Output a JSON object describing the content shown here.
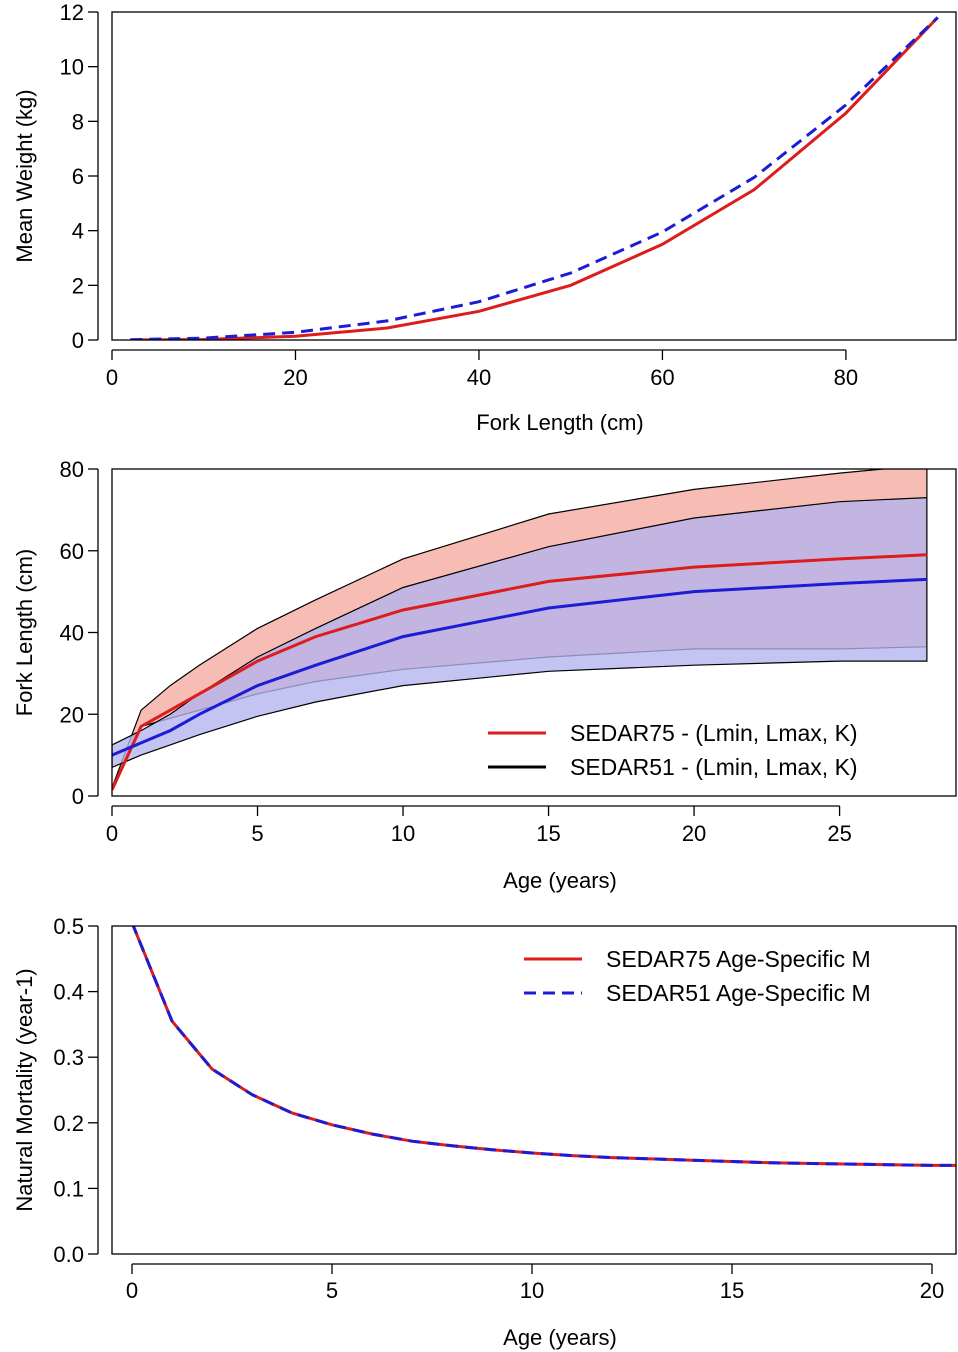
{
  "chart_data": [
    {
      "type": "line",
      "xlabel": "Fork Length (cm)",
      "ylabel": "Mean Weight (kg)",
      "xlim": [
        0,
        92
      ],
      "ylim": [
        0,
        12
      ],
      "xticks": [
        0,
        20,
        40,
        60,
        80
      ],
      "yticks": [
        0,
        2,
        4,
        6,
        8,
        10,
        12
      ],
      "grid": false,
      "legend": "none",
      "series": [
        {
          "color": "#dd1c1c",
          "style": "solid",
          "x": [
            2,
            10,
            20,
            30,
            40,
            50,
            60,
            70,
            80,
            90
          ],
          "y": [
            0.0,
            0.02,
            0.14,
            0.44,
            1.05,
            2.0,
            3.5,
            5.5,
            8.3,
            11.8
          ]
        },
        {
          "color": "#1c1cd6",
          "style": "dashed",
          "x": [
            2,
            10,
            20,
            30,
            40,
            50,
            60,
            70,
            80,
            90
          ],
          "y": [
            0.01,
            0.07,
            0.28,
            0.7,
            1.4,
            2.45,
            3.95,
            5.95,
            8.6,
            11.8
          ]
        }
      ]
    },
    {
      "type": "area",
      "xlabel": "Age (years)",
      "ylabel": "Fork Length (cm)",
      "xlim": [
        0,
        29
      ],
      "ylim": [
        0,
        80
      ],
      "xticks": [
        0,
        5,
        10,
        15,
        20,
        25
      ],
      "yticks": [
        0,
        20,
        40,
        60,
        80
      ],
      "grid": false,
      "legend": "right",
      "legend_entries": [
        {
          "label": "SEDAR75 -  (Lmin, Lmax, K)",
          "color": "#dd1c1c"
        },
        {
          "label": "SEDAR51 -  (Lmin, Lmax, K)",
          "color": "#000000"
        }
      ],
      "bands": [
        {
          "fill": "#f7bcb3",
          "x": [
            0,
            1,
            2,
            3,
            5,
            7,
            10,
            15,
            20,
            25,
            28
          ],
          "upper": [
            2,
            21,
            27,
            32,
            41,
            48,
            58,
            69,
            75,
            79,
            81
          ],
          "lower": [
            2,
            17,
            19,
            21,
            25,
            28,
            31,
            34,
            36,
            36,
            36.5
          ]
        },
        {
          "fill": "#b3b3f0",
          "x": [
            0,
            1,
            2,
            3,
            5,
            7,
            10,
            15,
            20,
            25,
            28
          ],
          "upper": [
            12.5,
            16,
            20,
            25,
            34,
            41,
            51,
            61,
            68,
            72,
            73
          ],
          "lower": [
            7,
            10,
            12.5,
            15,
            19.5,
            23,
            27,
            30.5,
            32,
            33,
            33
          ]
        }
      ],
      "series": [
        {
          "color": "#dd1c1c",
          "x": [
            0,
            1,
            2,
            3,
            5,
            7,
            10,
            15,
            20,
            25,
            28
          ],
          "y": [
            1.5,
            17,
            21,
            25,
            33,
            39,
            45.5,
            52.5,
            56,
            58,
            59
          ]
        },
        {
          "color": "#1c1cd6",
          "x": [
            0,
            1,
            2,
            3,
            5,
            7,
            10,
            15,
            20,
            25,
            28
          ],
          "y": [
            10,
            13,
            16,
            20,
            27,
            32,
            39,
            46,
            50,
            52,
            53
          ]
        }
      ]
    },
    {
      "type": "line",
      "xlabel": "Age (years)",
      "ylabel": "Natural Mortality (year-1)",
      "xlim": [
        -0.5,
        20.6
      ],
      "ylim": [
        0,
        0.5
      ],
      "xticks": [
        0,
        5,
        10,
        15,
        20
      ],
      "yticks": [
        0.0,
        0.1,
        0.2,
        0.3,
        0.4,
        0.5
      ],
      "grid": false,
      "legend": "top-right",
      "series": [
        {
          "name": "SEDAR75 Age-Specific M",
          "color": "#dd1c1c",
          "style": "solid",
          "x": [
            0,
            1,
            2,
            3,
            4,
            5,
            6,
            7,
            8,
            9,
            10,
            11,
            12,
            13,
            14,
            15,
            16,
            17,
            18,
            19,
            20,
            20.6
          ],
          "y": [
            0.505,
            0.355,
            0.282,
            0.243,
            0.215,
            0.197,
            0.183,
            0.172,
            0.165,
            0.159,
            0.154,
            0.15,
            0.147,
            0.145,
            0.143,
            0.141,
            0.139,
            0.138,
            0.137,
            0.136,
            0.135,
            0.135
          ]
        },
        {
          "name": "SEDAR51 Age-Specific M",
          "color": "#1c1cd6",
          "style": "dashed",
          "x": [
            0,
            1,
            2,
            3,
            4,
            5,
            6,
            7,
            8,
            9,
            10,
            11,
            12,
            13,
            14,
            15,
            16,
            17,
            18,
            19,
            20,
            20.6
          ],
          "y": [
            0.505,
            0.355,
            0.282,
            0.243,
            0.215,
            0.197,
            0.183,
            0.172,
            0.165,
            0.159,
            0.154,
            0.15,
            0.147,
            0.145,
            0.143,
            0.141,
            0.139,
            0.138,
            0.137,
            0.136,
            0.135,
            0.135
          ]
        }
      ]
    }
  ]
}
